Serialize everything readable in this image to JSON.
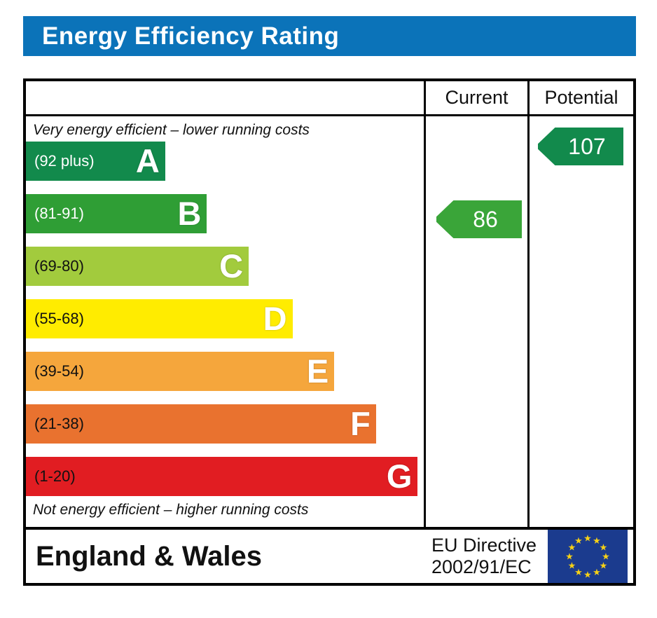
{
  "title": "Energy Efficiency Rating",
  "columns": {
    "current": "Current",
    "potential": "Potential"
  },
  "notes": {
    "top": "Very energy efficient – lower running costs",
    "bottom": "Not energy efficient – higher running costs"
  },
  "bands": [
    {
      "letter": "A",
      "range": "(92 plus)",
      "color": "#128a4c",
      "text_color": "#ffffff",
      "width_pct": 35
    },
    {
      "letter": "B",
      "range": "(81-91)",
      "color": "#2f9e35",
      "text_color": "#ffffff",
      "width_pct": 45.5
    },
    {
      "letter": "C",
      "range": "(69-80)",
      "color": "#a2cb3d",
      "text_color": "#111111",
      "width_pct": 56
    },
    {
      "letter": "D",
      "range": "(55-68)",
      "color": "#ffec00",
      "text_color": "#111111",
      "width_pct": 67
    },
    {
      "letter": "E",
      "range": "(39-54)",
      "color": "#f5a63c",
      "text_color": "#111111",
      "width_pct": 77.5
    },
    {
      "letter": "F",
      "range": "(21-38)",
      "color": "#e9722f",
      "text_color": "#111111",
      "width_pct": 88
    },
    {
      "letter": "G",
      "range": "(1-20)",
      "color": "#e11d22",
      "text_color": "#111111",
      "width_pct": 98.5
    }
  ],
  "current": {
    "value": "86",
    "band": "B",
    "color": "#3aa539"
  },
  "potential": {
    "value": "107",
    "band": "A",
    "color": "#128a4c"
  },
  "footer": {
    "region": "England & Wales",
    "directive_line1": "EU Directive",
    "directive_line2": "2002/91/EC"
  },
  "colors": {
    "title_bg": "#0b73b9",
    "title_text": "#ffffff",
    "border": "#000000",
    "flag_bg": "#1b3b8e",
    "flag_stars": "#f7d116"
  },
  "chart_data": {
    "type": "bar",
    "title": "Energy Efficiency Rating",
    "categories": [
      "A",
      "B",
      "C",
      "D",
      "E",
      "F",
      "G"
    ],
    "band_ranges": [
      "92 plus",
      "81-91",
      "69-80",
      "55-68",
      "39-54",
      "21-38",
      "1-20"
    ],
    "bar_lengths_pct": [
      35,
      45.5,
      56,
      67,
      77.5,
      88,
      98.5
    ],
    "ratings": [
      {
        "name": "Current",
        "value": 86,
        "band": "B"
      },
      {
        "name": "Potential",
        "value": 107,
        "band": "A"
      }
    ],
    "region": "England & Wales",
    "directive": "EU Directive 2002/91/EC",
    "legend_position": "none",
    "grid": false
  }
}
